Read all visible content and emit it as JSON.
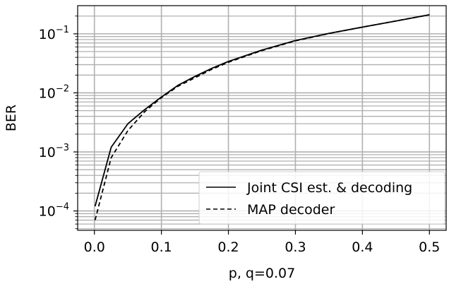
{
  "chart_data": {
    "type": "line",
    "title": "",
    "xlabel": "p, q=0.07",
    "ylabel": "BER",
    "xlim": [
      -0.025,
      0.525
    ],
    "ylim": [
      4.7e-05,
      0.3
    ],
    "yscale": "log",
    "grid": true,
    "legend_position": "lower-right",
    "x_ticks": [
      {
        "value": 0.0,
        "label": "0.0"
      },
      {
        "value": 0.1,
        "label": "0.1"
      },
      {
        "value": 0.2,
        "label": "0.2"
      },
      {
        "value": 0.3,
        "label": "0.3"
      },
      {
        "value": 0.4,
        "label": "0.4"
      },
      {
        "value": 0.5,
        "label": "0.5"
      }
    ],
    "y_ticks": [
      {
        "value": 0.0001,
        "base": "10",
        "exp": "−4"
      },
      {
        "value": 0.001,
        "base": "10",
        "exp": "−3"
      },
      {
        "value": 0.01,
        "base": "10",
        "exp": "−2"
      },
      {
        "value": 0.1,
        "base": "10",
        "exp": "−1"
      }
    ],
    "series": [
      {
        "name": "Joint CSI est. & decoding",
        "style": "solid",
        "color": "#000000",
        "x": [
          0.001,
          0.025,
          0.05,
          0.075,
          0.1,
          0.125,
          0.15,
          0.175,
          0.2,
          0.25,
          0.3,
          0.35,
          0.4,
          0.45,
          0.5
        ],
        "y": [
          0.00012,
          0.0012,
          0.003,
          0.0052,
          0.0085,
          0.0135,
          0.019,
          0.026,
          0.034,
          0.053,
          0.077,
          0.102,
          0.13,
          0.165,
          0.21
        ]
      },
      {
        "name": "MAP decoder",
        "style": "dashed",
        "color": "#000000",
        "x": [
          0.001,
          0.025,
          0.05,
          0.075,
          0.1,
          0.125,
          0.15,
          0.175,
          0.2,
          0.25,
          0.3,
          0.35,
          0.4,
          0.45,
          0.5
        ],
        "y": [
          7e-05,
          0.0008,
          0.0023,
          0.0048,
          0.0083,
          0.013,
          0.018,
          0.025,
          0.033,
          0.052,
          0.076,
          0.101,
          0.13,
          0.165,
          0.21
        ]
      }
    ]
  }
}
